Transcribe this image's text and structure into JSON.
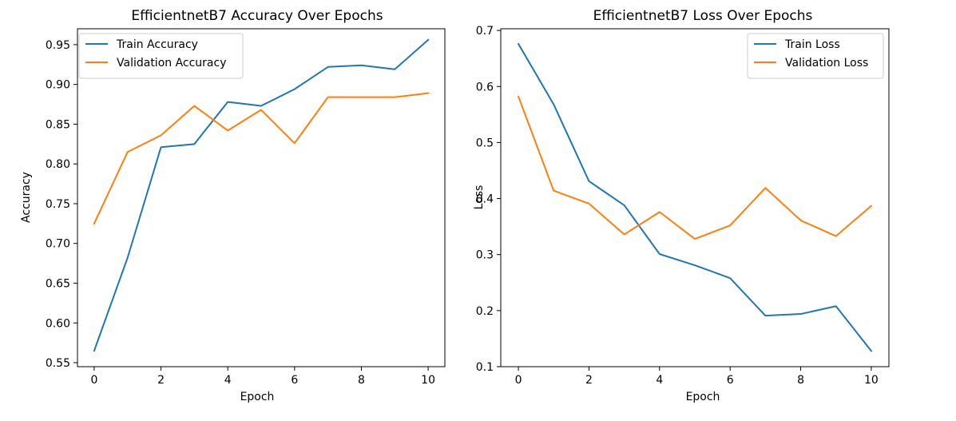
{
  "chart_data": [
    {
      "type": "line",
      "title": "EfficientnetB7 Accuracy Over Epochs",
      "xlabel": "Epoch",
      "ylabel": "Accuracy",
      "xlim": [
        -0.5,
        10.5
      ],
      "ylim": [
        0.545,
        0.97
      ],
      "xticks": [
        0,
        2,
        4,
        6,
        8,
        10
      ],
      "yticks": [
        0.55,
        0.6,
        0.65,
        0.7,
        0.75,
        0.8,
        0.85,
        0.9,
        0.95
      ],
      "ytick_decimals": 2,
      "legend_position": "top-left",
      "grid": false,
      "x": [
        0,
        1,
        2,
        3,
        4,
        5,
        6,
        7,
        8,
        9,
        10
      ],
      "series": [
        {
          "name": "Train Accuracy",
          "color": "#1f77b4",
          "values": [
            0.565,
            0.682,
            0.821,
            0.825,
            0.878,
            0.873,
            0.894,
            0.922,
            0.924,
            0.919,
            0.956
          ]
        },
        {
          "name": "Validation Accuracy",
          "color": "#ff7f0e",
          "values": [
            0.725,
            0.815,
            0.836,
            0.873,
            0.842,
            0.868,
            0.826,
            0.884,
            0.884,
            0.884,
            0.889
          ]
        }
      ]
    },
    {
      "type": "line",
      "title": "EfficientnetB7 Loss Over Epochs",
      "xlabel": "Epoch",
      "ylabel": "Loss",
      "xlim": [
        -0.5,
        10.5
      ],
      "ylim": [
        0.1,
        0.703
      ],
      "xticks": [
        0,
        2,
        4,
        6,
        8,
        10
      ],
      "yticks": [
        0.1,
        0.2,
        0.3,
        0.4,
        0.5,
        0.6,
        0.7
      ],
      "ytick_decimals": 1,
      "legend_position": "top-right",
      "grid": false,
      "x": [
        0,
        1,
        2,
        3,
        4,
        5,
        6,
        7,
        8,
        9,
        10
      ],
      "series": [
        {
          "name": "Train Loss",
          "color": "#1f77b4",
          "values": [
            0.676,
            0.568,
            0.431,
            0.388,
            0.301,
            0.281,
            0.258,
            0.191,
            0.194,
            0.208,
            0.128
          ]
        },
        {
          "name": "Validation Loss",
          "color": "#ff7f0e",
          "values": [
            0.582,
            0.414,
            0.391,
            0.336,
            0.376,
            0.328,
            0.352,
            0.419,
            0.361,
            0.333,
            0.387
          ]
        }
      ]
    }
  ]
}
